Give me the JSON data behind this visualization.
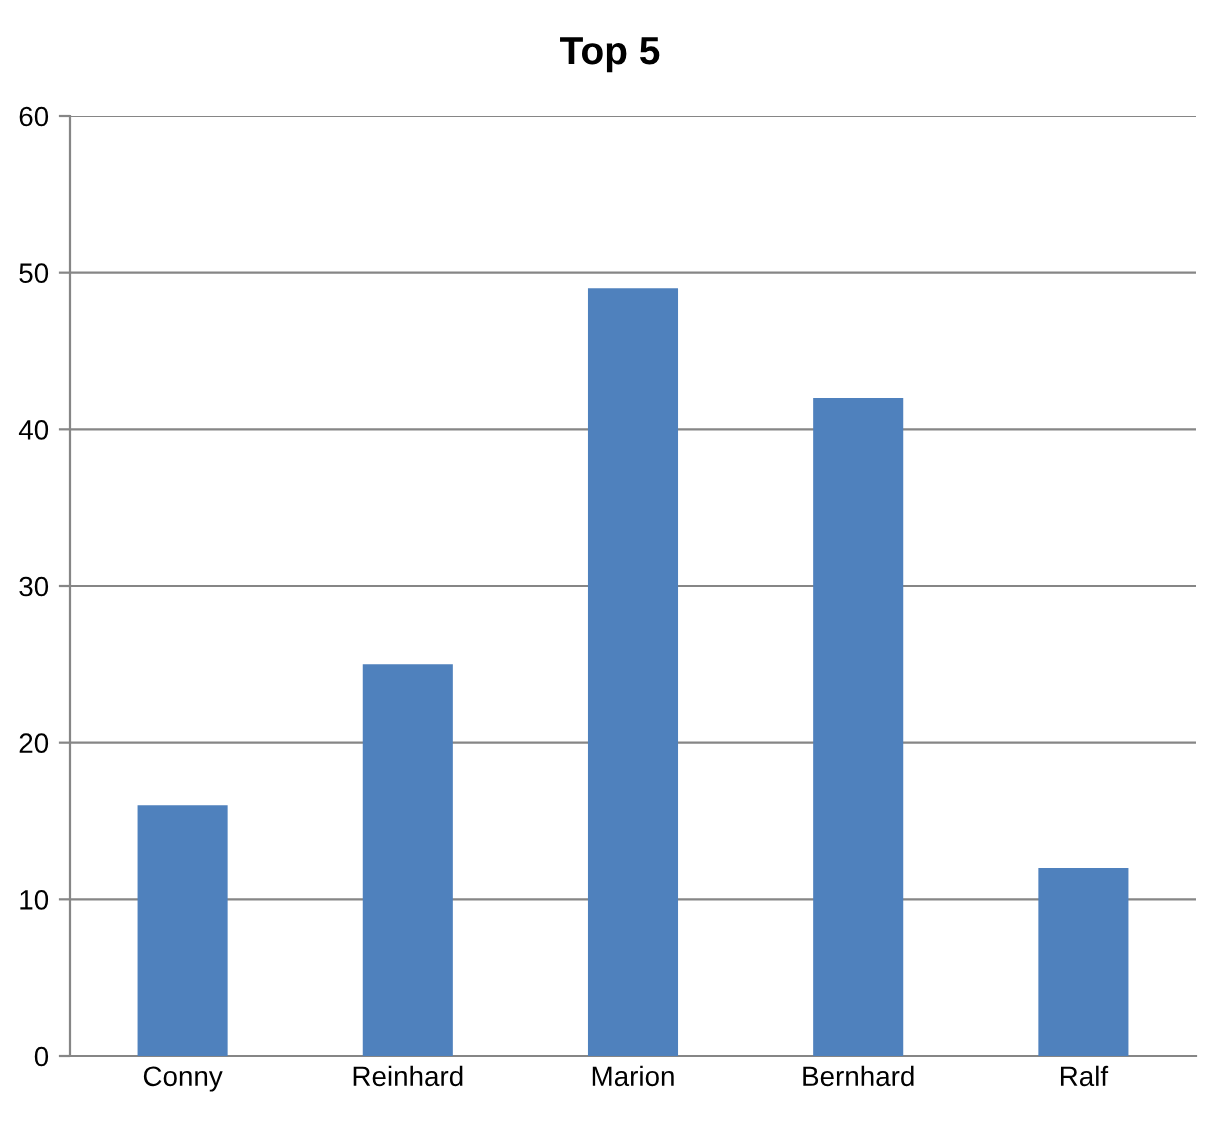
{
  "chart_data": {
    "type": "bar",
    "title": "Top 5",
    "categories": [
      "Conny",
      "Reinhard",
      "Marion",
      "Bernhard",
      "Ralf"
    ],
    "values": [
      16,
      25,
      49,
      42,
      12
    ],
    "color": "#4f81bd",
    "ylim": [
      0,
      60
    ],
    "yticks": [
      0,
      10,
      20,
      30,
      40,
      50,
      60
    ],
    "grid": "y",
    "legend": false
  }
}
